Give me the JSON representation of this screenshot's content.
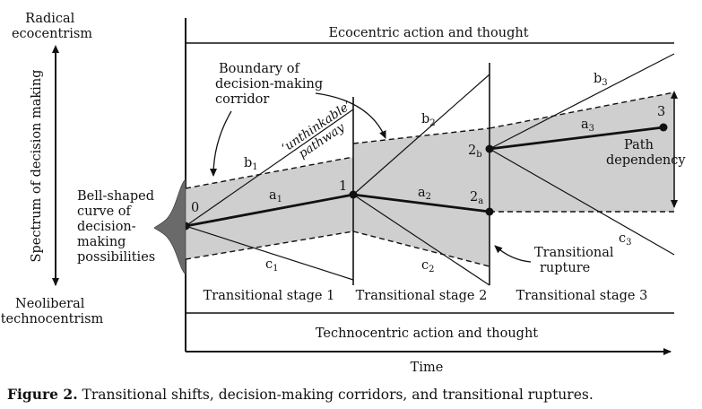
{
  "spectrum": {
    "top_label": [
      "Radical",
      "ecocentrism"
    ],
    "bottom_label": [
      "Neoliberal",
      "technocentrism"
    ],
    "axis_label": "Spectrum of decision making"
  },
  "bands": {
    "top": "Ecocentric action and thought",
    "bottom": "Technocentric action and thought"
  },
  "time_label": "Time",
  "stages": [
    "Transitional stage 1",
    "Transitional stage 2",
    "Transitional stage 3"
  ],
  "annotations": {
    "boundary": [
      "Boundary of",
      "decision-making",
      "corridor"
    ],
    "bell": [
      "Bell-shaped",
      "curve of",
      "decision-",
      "making",
      "possibilities"
    ],
    "unthinkable": [
      "‘unthinkable’",
      "pathway"
    ],
    "path_dependency": [
      "Path",
      "dependency"
    ],
    "rupture": [
      "Transitional",
      "rupture"
    ]
  },
  "points": {
    "p0": "0",
    "p1": "1",
    "p2a": "2",
    "p2a_sub": "a",
    "p2b": "2",
    "p2b_sub": "b",
    "p3": "3"
  },
  "pathways": {
    "a1": {
      "base": "a",
      "sub": "1"
    },
    "a2": {
      "base": "a",
      "sub": "2"
    },
    "a3": {
      "base": "a",
      "sub": "3"
    },
    "b1": {
      "base": "b",
      "sub": "1"
    },
    "b2": {
      "base": "b",
      "sub": "2"
    },
    "b3": {
      "base": "b",
      "sub": "3"
    },
    "c1": {
      "base": "c",
      "sub": "1"
    },
    "c2": {
      "base": "c",
      "sub": "2"
    },
    "c3": {
      "base": "c",
      "sub": "3"
    }
  },
  "caption": {
    "label": "Figure 2.",
    "text": " Transitional shifts, decision-making corridors, and transitional ruptures."
  },
  "colors": {
    "corridor_fill": "#cfcfcf",
    "bell_fill": "#6a6a6a",
    "line": "#111111"
  }
}
